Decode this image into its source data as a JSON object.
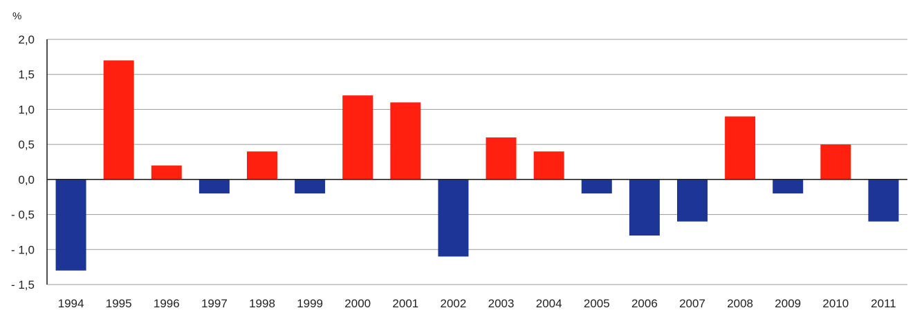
{
  "chart_data": {
    "type": "bar",
    "unit_label": "%",
    "categories": [
      "1994",
      "1995",
      "1996",
      "1997",
      "1998",
      "1999",
      "2000",
      "2001",
      "2002",
      "2003",
      "2004",
      "2005",
      "2006",
      "2007",
      "2008",
      "2009",
      "2010",
      "2011"
    ],
    "values": [
      -1.3,
      1.7,
      0.2,
      -0.2,
      0.4,
      -0.2,
      1.2,
      1.1,
      -1.1,
      0.6,
      0.4,
      -0.2,
      -0.8,
      -0.6,
      0.9,
      -0.2,
      0.5,
      -0.6
    ],
    "ylim": [
      -1.5,
      2.0
    ],
    "yticks": [
      2.0,
      1.5,
      1.0,
      0.5,
      0.0,
      -0.5,
      -1.0,
      -1.5
    ],
    "ytick_labels": [
      "2,0",
      "1,5",
      "1,0",
      "0,5",
      "0,0",
      "- 0,5",
      "- 1,0",
      "- 1,5"
    ],
    "grid": true,
    "colors": {
      "positive": "#ff2010",
      "negative": "#1c3596"
    }
  }
}
